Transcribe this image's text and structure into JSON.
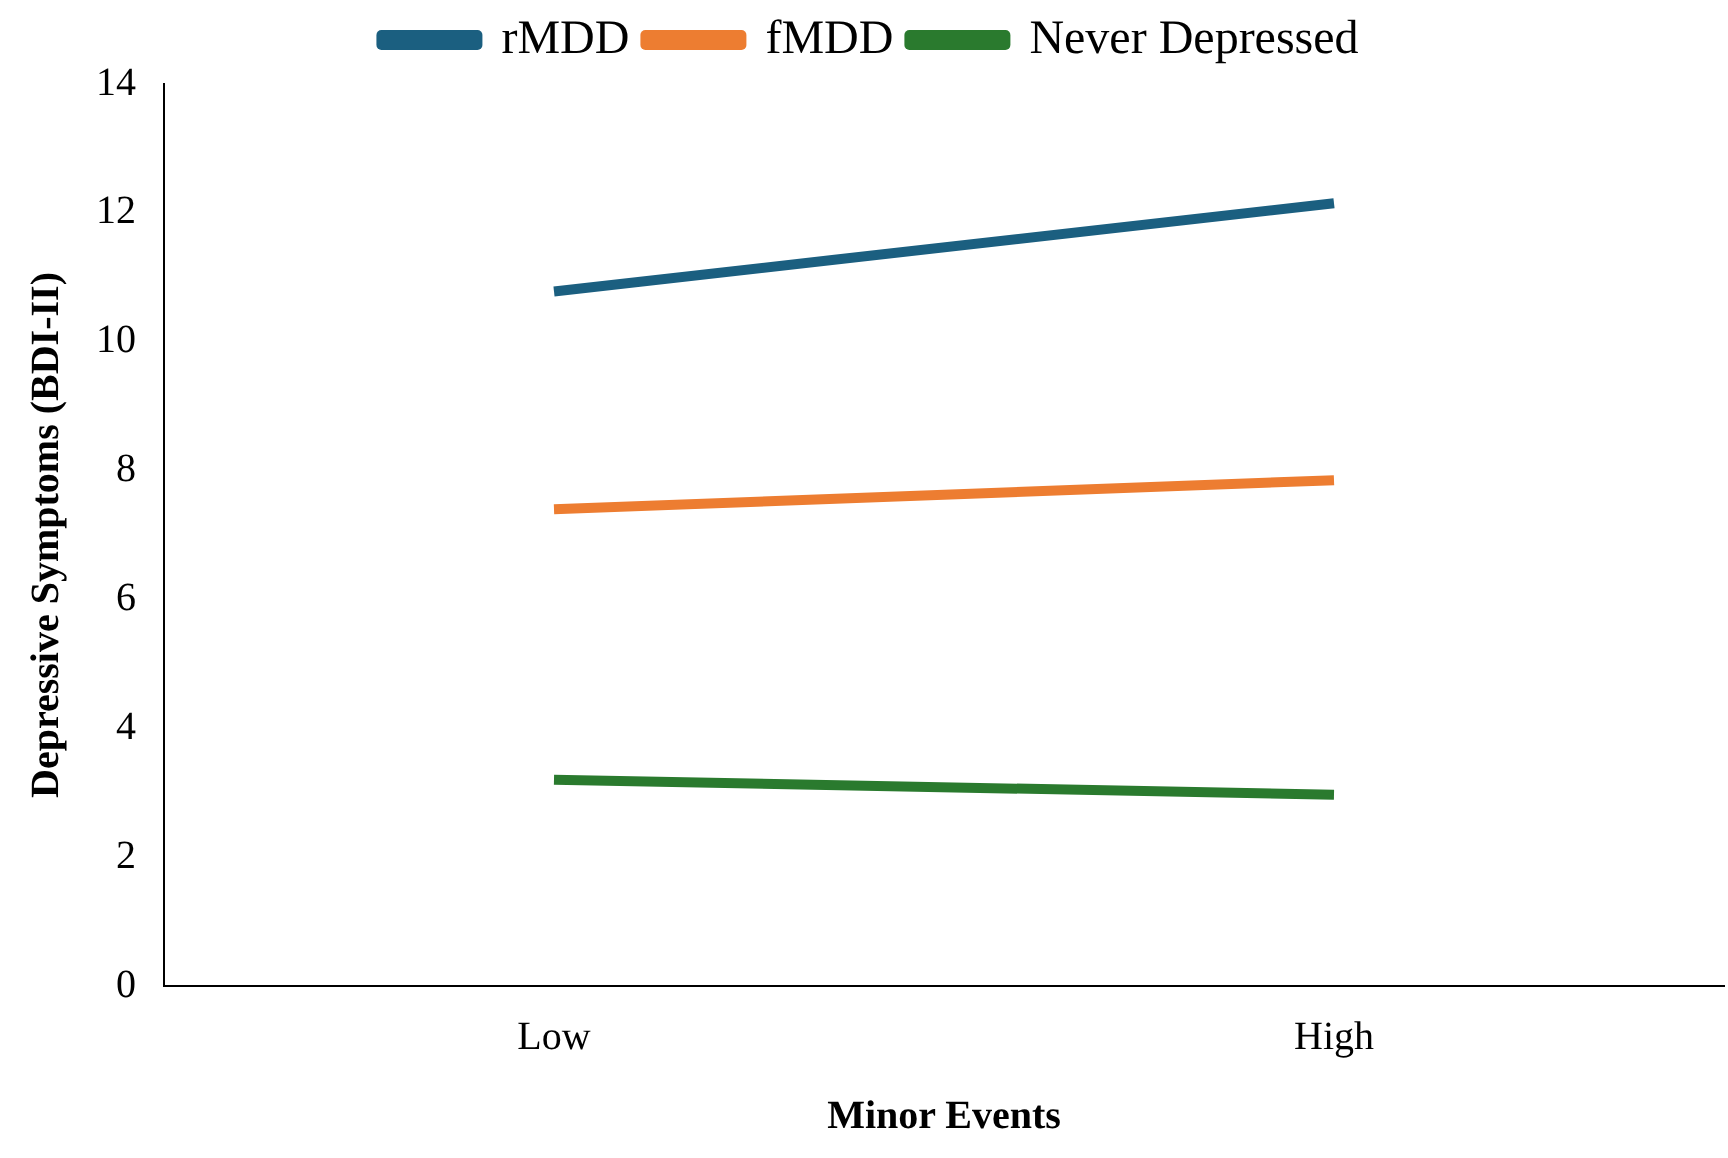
{
  "chart_data": {
    "type": "line",
    "xlabel": "Minor Events",
    "ylabel": "Depressive Symptoms (BDI-II)",
    "categories": [
      "Low",
      "High"
    ],
    "series": [
      {
        "name": "rMDD",
        "color": "#1b5f80",
        "values": [
          10.78,
          12.15
        ]
      },
      {
        "name": "fMDD",
        "color": "#ed7d31",
        "values": [
          7.4,
          7.85
        ]
      },
      {
        "name": "Never Depressed",
        "color": "#2a7a2e",
        "values": [
          3.2,
          2.97
        ]
      }
    ],
    "ylim": [
      0,
      14
    ],
    "yticks": [
      0,
      2,
      4,
      6,
      8,
      10,
      12,
      14
    ],
    "grid": false,
    "legend": "top",
    "marker": "none",
    "line_style": "solid"
  }
}
